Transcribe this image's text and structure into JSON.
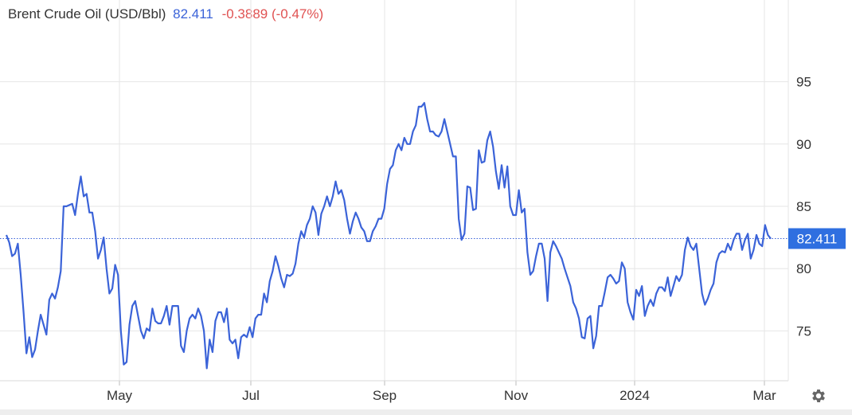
{
  "header": {
    "title": "Brent Crude Oil (USD/Bbl)",
    "price": "82.411",
    "change": "-0.3889 (-0.47%)"
  },
  "colors": {
    "line": "#3b63d8",
    "badge": "#2f6fe0",
    "change_negative": "#e05252",
    "grid": "#e6e6e6",
    "axis_text": "#333333"
  },
  "chart_data": {
    "type": "line",
    "title": "Brent Crude Oil (USD/Bbl)",
    "xlabel": "",
    "ylabel": "",
    "ylim": [
      71,
      99
    ],
    "yticks": [
      75,
      80,
      85,
      90,
      95
    ],
    "x_tick_labels": [
      "May",
      "Jul",
      "Sep",
      "Nov",
      "2024",
      "Mar"
    ],
    "grid": true,
    "last_value": "82.411",
    "reference_line": 82.411,
    "series": [
      {
        "values": [
          82.7,
          82.1,
          81.0,
          81.2,
          82.0,
          79.5,
          76.5,
          73.2,
          74.5,
          72.9,
          73.5,
          75.0,
          76.3,
          75.5,
          74.7,
          77.5,
          78.0,
          77.6,
          78.5,
          79.8,
          85.0,
          85.0,
          85.1,
          85.2,
          84.3,
          86.0,
          87.4,
          85.8,
          86.0,
          84.5,
          84.5,
          83.0,
          80.8,
          81.5,
          82.5,
          80.0,
          78.0,
          78.4,
          80.3,
          79.5,
          75.0,
          72.3,
          72.5,
          75.5,
          77.0,
          77.4,
          76.2,
          75.0,
          74.4,
          75.2,
          75.0,
          76.8,
          75.8,
          75.6,
          75.6,
          76.2,
          77.0,
          75.5,
          77.0,
          77.0,
          77.0,
          73.8,
          73.3,
          75.0,
          76.0,
          76.3,
          76.0,
          76.8,
          76.2,
          75.0,
          72.0,
          74.3,
          73.3,
          75.8,
          76.5,
          76.5,
          75.7,
          76.8,
          74.3,
          74.0,
          74.3,
          72.8,
          74.5,
          74.7,
          74.5,
          75.3,
          74.5,
          76.0,
          76.3,
          76.3,
          78.0,
          77.3,
          79.0,
          79.8,
          81.0,
          80.2,
          79.2,
          78.5,
          79.5,
          79.4,
          79.6,
          80.4,
          82.0,
          83.0,
          82.5,
          83.5,
          84.0,
          85.0,
          84.5,
          82.7,
          84.4,
          85.0,
          85.8,
          85.0,
          85.8,
          87.0,
          86.0,
          86.3,
          85.5,
          84.0,
          82.8,
          83.8,
          84.5,
          84.0,
          83.3,
          83.0,
          82.2,
          82.2,
          83.0,
          83.4,
          84.0,
          84.0,
          84.8,
          86.8,
          88.0,
          88.3,
          89.5,
          90.0,
          89.5,
          90.5,
          90.0,
          90.0,
          91.0,
          91.5,
          93.0,
          93.0,
          93.3,
          92.0,
          91.0,
          91.0,
          90.7,
          90.6,
          91.0,
          92.0,
          91.0,
          90.0,
          89.0,
          89.0,
          84.0,
          82.3,
          82.8,
          86.6,
          86.5,
          84.7,
          84.8,
          89.5,
          88.5,
          88.6,
          90.3,
          91.0,
          89.8,
          87.8,
          86.4,
          88.3,
          86.5,
          88.2,
          85.0,
          84.3,
          84.3,
          86.3,
          84.5,
          84.8,
          81.3,
          79.5,
          79.8,
          81.0,
          82.0,
          82.0,
          80.8,
          77.4,
          81.3,
          82.2,
          81.8,
          81.3,
          80.8,
          80.0,
          79.3,
          78.6,
          77.3,
          76.8,
          76.0,
          74.5,
          74.4,
          76.0,
          76.2,
          73.6,
          74.6,
          77.0,
          77.0,
          78.1,
          79.3,
          79.5,
          79.2,
          78.8,
          79.0,
          80.5,
          80.0,
          77.3,
          76.5,
          75.9,
          78.3,
          77.8,
          78.6,
          76.2,
          77.0,
          77.5,
          77.0,
          78.0,
          78.5,
          78.5,
          78.2,
          79.3,
          77.8,
          78.6,
          79.4,
          79.0,
          79.5,
          81.5,
          82.5,
          81.8,
          81.5,
          82.0,
          80.0,
          78.0,
          77.1,
          77.6,
          78.3,
          78.8,
          80.5,
          81.2,
          81.4,
          81.3,
          82.0,
          81.5,
          82.3,
          82.8,
          82.8,
          81.5,
          82.3,
          82.8,
          80.8,
          81.5,
          82.7,
          82.0,
          81.8,
          83.5,
          82.7,
          82.4
        ]
      }
    ]
  }
}
